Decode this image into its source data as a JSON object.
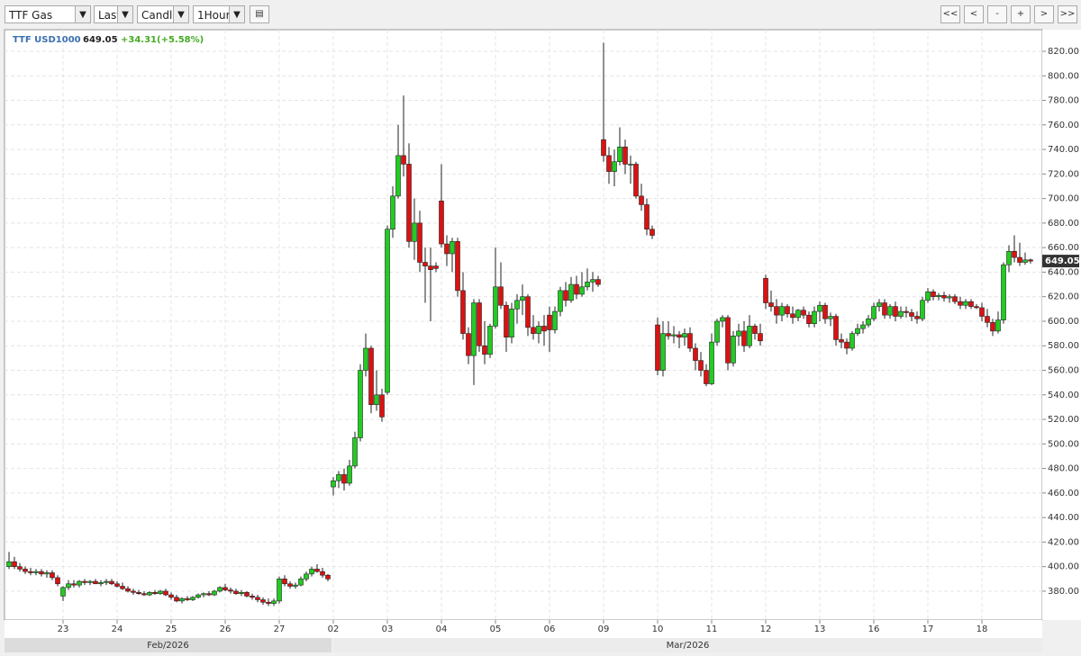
{
  "toolbar": {
    "instrument": "TTF Gas",
    "field": "Last",
    "style": "Candle",
    "interval": "1Hour",
    "nav": [
      "<<",
      "<",
      "-",
      "+",
      ">",
      ">>"
    ]
  },
  "chart_data": {
    "type": "candlestick",
    "symbol": "TTF USD1000",
    "change": "+34.31(+5.58%)",
    "up_color": "#22cc22",
    "down_color": "#dd1111",
    "grid": true,
    "months": [
      "Feb/2026",
      "Mar/2026"
    ],
    "ylim": [
      356.5,
      837.6
    ],
    "yticks": [
      {
        "value": 380,
        "label": "380.00"
      },
      {
        "value": 400,
        "label": "400.00"
      },
      {
        "value": 420,
        "label": "420.00"
      },
      {
        "value": 440,
        "label": "440.00"
      },
      {
        "value": 460,
        "label": "460.00"
      },
      {
        "value": 480,
        "label": "480.00"
      },
      {
        "value": 500,
        "label": "500.00"
      },
      {
        "value": 520,
        "label": "520.00"
      },
      {
        "value": 540,
        "label": "540.00"
      },
      {
        "value": 560,
        "label": "560.00"
      },
      {
        "value": 580,
        "label": "580.00"
      },
      {
        "value": 600,
        "label": "600.00"
      },
      {
        "value": 620,
        "label": "620.00"
      },
      {
        "value": 640,
        "label": "640.00"
      },
      {
        "value": 660,
        "label": "660.00"
      },
      {
        "value": 680,
        "label": "680.00"
      },
      {
        "value": 700,
        "label": "700.00"
      },
      {
        "value": 720,
        "label": "720.00"
      },
      {
        "value": 740,
        "label": "740.00"
      },
      {
        "value": 760,
        "label": "760.00"
      },
      {
        "value": 780,
        "label": "780.00"
      },
      {
        "value": 800,
        "label": "800.00"
      },
      {
        "value": 820,
        "label": "820.00"
      }
    ],
    "categories": [
      null,
      null,
      null,
      null,
      null,
      null,
      null,
      null,
      null,
      null,
      "23",
      null,
      null,
      null,
      null,
      null,
      null,
      null,
      null,
      null,
      "24",
      null,
      null,
      null,
      null,
      null,
      null,
      null,
      null,
      null,
      "25",
      null,
      null,
      null,
      null,
      null,
      null,
      null,
      null,
      null,
      "26",
      null,
      null,
      null,
      null,
      null,
      null,
      null,
      null,
      null,
      "27",
      null,
      null,
      null,
      null,
      null,
      null,
      null,
      null,
      null,
      "02",
      null,
      null,
      null,
      null,
      null,
      null,
      null,
      null,
      null,
      "03",
      null,
      null,
      null,
      null,
      null,
      null,
      null,
      null,
      null,
      "04",
      null,
      null,
      null,
      null,
      null,
      null,
      null,
      null,
      null,
      "05",
      null,
      null,
      null,
      null,
      null,
      null,
      null,
      null,
      null,
      "06",
      null,
      null,
      null,
      null,
      null,
      null,
      null,
      null,
      null,
      "09",
      null,
      null,
      null,
      null,
      null,
      null,
      null,
      null,
      null,
      "10",
      null,
      null,
      null,
      null,
      null,
      null,
      null,
      null,
      null,
      "11",
      null,
      null,
      null,
      null,
      null,
      null,
      null,
      null,
      null,
      "12",
      null,
      null,
      null,
      null,
      null,
      null,
      null,
      null,
      null,
      "13",
      null,
      null,
      null,
      null,
      null,
      null,
      null,
      null,
      null,
      "16",
      null,
      null,
      null,
      null,
      null,
      null,
      null,
      null,
      null,
      "17",
      null,
      null,
      null,
      null,
      null,
      null,
      null,
      null,
      null,
      "18",
      null,
      null,
      null,
      null,
      null,
      null,
      null,
      null,
      null
    ],
    "open": [
      400,
      404,
      400,
      398,
      396,
      395,
      396,
      394,
      395,
      391,
      376,
      383,
      386,
      385,
      388,
      387,
      388,
      386,
      387,
      388,
      386,
      384,
      382,
      380,
      379,
      378,
      377,
      379,
      378,
      380,
      377,
      375,
      372,
      374,
      373,
      375,
      377,
      378,
      377,
      380,
      383,
      381,
      380,
      378,
      379,
      376,
      375,
      373,
      371,
      370,
      372,
      390,
      386,
      384,
      385,
      390,
      394,
      398,
      396,
      393,
      465,
      470,
      475,
      468,
      482,
      505,
      560,
      578,
      532,
      540,
      542,
      675,
      702,
      735,
      728,
      665,
      680,
      648,
      645,
      645,
      698,
      663,
      655,
      665,
      625,
      590,
      572,
      615,
      580,
      573,
      596,
      628,
      613,
      587,
      610,
      617,
      620,
      595,
      590,
      596,
      605,
      593,
      608,
      625,
      617,
      630,
      622,
      628,
      632,
      634,
      748,
      735,
      722,
      730,
      742,
      728,
      728,
      702,
      695,
      675,
      597,
      560,
      590,
      588,
      589,
      587,
      590,
      578,
      568,
      560,
      549,
      583,
      600,
      603,
      566,
      588,
      592,
      580,
      596,
      590,
      635,
      615,
      612,
      605,
      612,
      606,
      603,
      609,
      605,
      598,
      608,
      613,
      602,
      604,
      585,
      583,
      578,
      590,
      594,
      597,
      602,
      612,
      615,
      605,
      612,
      604,
      608,
      607,
      604,
      602,
      617,
      624,
      620,
      621,
      619,
      620,
      616,
      613,
      616,
      612,
      611,
      604,
      599,
      592,
      601,
      646,
      657,
      652,
      648,
      650
    ],
    "high": [
      412,
      408,
      403,
      400,
      399,
      398,
      398,
      397,
      397,
      393,
      384,
      389,
      389,
      389,
      390,
      389,
      390,
      389,
      390,
      390,
      388,
      387,
      384,
      382,
      381,
      380,
      380,
      381,
      381,
      382,
      379,
      377,
      375,
      376,
      376,
      378,
      379,
      380,
      381,
      384,
      386,
      383,
      382,
      381,
      380,
      378,
      377,
      375,
      374,
      374,
      392,
      393,
      388,
      387,
      392,
      396,
      400,
      402,
      399,
      394,
      473,
      478,
      480,
      487,
      510,
      565,
      590,
      580,
      560,
      545,
      678,
      710,
      760,
      784,
      745,
      700,
      690,
      660,
      660,
      648,
      728,
      670,
      668,
      668,
      640,
      595,
      618,
      618,
      600,
      598,
      660,
      648,
      616,
      615,
      622,
      630,
      622,
      605,
      600,
      605,
      612,
      612,
      628,
      632,
      636,
      637,
      640,
      643,
      640,
      637,
      827,
      742,
      740,
      758,
      748,
      735,
      730,
      712,
      700,
      678,
      603,
      600,
      600,
      596,
      592,
      594,
      595,
      582,
      575,
      565,
      590,
      602,
      605,
      605,
      592,
      598,
      600,
      605,
      598,
      598,
      638,
      625,
      618,
      615,
      614,
      612,
      610,
      612,
      608,
      612,
      616,
      615,
      607,
      606,
      590,
      586,
      592,
      598,
      600,
      605,
      615,
      618,
      618,
      614,
      616,
      612,
      612,
      610,
      608,
      620,
      627,
      626,
      623,
      624,
      622,
      622,
      620,
      618,
      618,
      614,
      615,
      610,
      602,
      608,
      648,
      662,
      670,
      664,
      656,
      651
    ],
    "low": [
      398,
      398,
      396,
      394,
      393,
      393,
      392,
      391,
      389,
      384,
      372,
      381,
      383,
      383,
      385,
      385,
      386,
      384,
      385,
      385,
      383,
      381,
      379,
      377,
      377,
      376,
      376,
      377,
      377,
      376,
      373,
      371,
      370,
      372,
      372,
      374,
      375,
      376,
      376,
      379,
      380,
      378,
      377,
      376,
      375,
      373,
      371,
      369,
      368,
      368,
      370,
      384,
      382,
      382,
      384,
      388,
      392,
      395,
      391,
      388,
      458,
      464,
      462,
      466,
      480,
      502,
      555,
      525,
      527,
      518,
      540,
      668,
      700,
      718,
      660,
      650,
      640,
      615,
      600,
      640,
      660,
      645,
      640,
      620,
      585,
      565,
      548,
      575,
      565,
      570,
      594,
      610,
      575,
      582,
      598,
      605,
      588,
      585,
      582,
      580,
      575,
      590,
      604,
      612,
      615,
      618,
      620,
      625,
      624,
      628,
      730,
      712,
      710,
      727,
      720,
      712,
      700,
      690,
      670,
      667,
      556,
      555,
      585,
      582,
      578,
      580,
      575,
      560,
      555,
      547,
      548,
      580,
      595,
      560,
      563,
      580,
      575,
      578,
      585,
      580,
      610,
      608,
      598,
      600,
      603,
      598,
      600,
      602,
      595,
      595,
      600,
      598,
      596,
      580,
      578,
      573,
      576,
      588,
      590,
      595,
      600,
      608,
      602,
      602,
      600,
      602,
      603,
      600,
      598,
      600,
      615,
      617,
      617,
      616,
      615,
      614,
      610,
      610,
      610,
      610,
      600,
      595,
      588,
      590,
      598,
      640,
      648,
      645,
      646,
      647
    ],
    "close": [
      404,
      400,
      398,
      396,
      395,
      396,
      394,
      395,
      391,
      386,
      383,
      386,
      385,
      388,
      387,
      388,
      386,
      387,
      388,
      386,
      384,
      382,
      380,
      379,
      378,
      377,
      379,
      378,
      380,
      377,
      375,
      372,
      374,
      373,
      375,
      377,
      378,
      377,
      380,
      383,
      381,
      380,
      378,
      379,
      376,
      375,
      373,
      371,
      370,
      372,
      390,
      386,
      384,
      385,
      390,
      394,
      398,
      396,
      393,
      390,
      470,
      475,
      468,
      482,
      505,
      560,
      578,
      532,
      540,
      522,
      675,
      702,
      735,
      728,
      665,
      680,
      648,
      645,
      642,
      643,
      663,
      655,
      665,
      625,
      590,
      572,
      615,
      580,
      573,
      596,
      628,
      613,
      587,
      610,
      617,
      620,
      595,
      590,
      596,
      592,
      593,
      608,
      625,
      617,
      630,
      622,
      628,
      632,
      634,
      630,
      735,
      722,
      730,
      742,
      728,
      728,
      702,
      695,
      675,
      670,
      560,
      590,
      588,
      589,
      587,
      590,
      578,
      568,
      560,
      549,
      583,
      600,
      603,
      566,
      588,
      592,
      580,
      596,
      590,
      584,
      615,
      612,
      605,
      612,
      606,
      603,
      609,
      605,
      598,
      608,
      613,
      602,
      604,
      585,
      583,
      578,
      590,
      594,
      597,
      602,
      612,
      615,
      605,
      612,
      604,
      608,
      607,
      604,
      602,
      617,
      624,
      620,
      621,
      619,
      620,
      616,
      613,
      616,
      612,
      611,
      604,
      599,
      592,
      601,
      646,
      657,
      652,
      648,
      650,
      649.05
    ]
  }
}
